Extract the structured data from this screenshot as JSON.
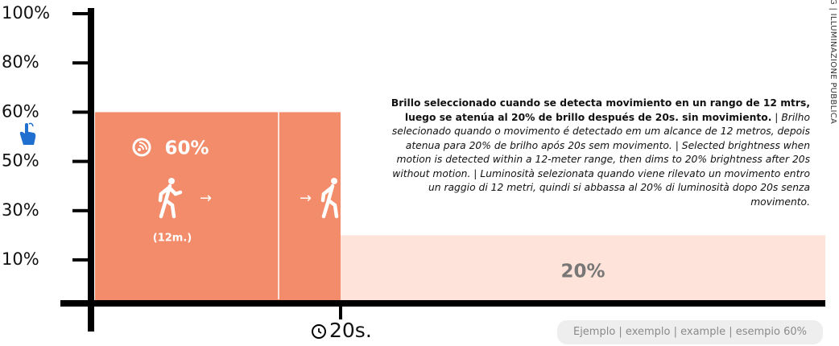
{
  "chart_data": {
    "type": "step",
    "yticks": [
      {
        "value": 100,
        "label": "100%"
      },
      {
        "value": 80,
        "label": "80%"
      },
      {
        "value": 60,
        "label": "60%"
      },
      {
        "value": 50,
        "label": "50%"
      },
      {
        "value": 30,
        "label": "30%"
      },
      {
        "value": 10,
        "label": "10%"
      }
    ],
    "ylim": [
      0,
      100
    ],
    "xlim": [
      0,
      60
    ],
    "xticks": [
      {
        "value": 20,
        "label": "20s."
      }
    ],
    "x": [
      0,
      20
    ],
    "values": [
      60,
      20
    ],
    "value_labels": [
      "60%",
      "20%"
    ],
    "colors": [
      "#f28c6a",
      "#fde3da"
    ],
    "annotation": "(12m.)",
    "description": {
      "bold": "Brillo seleccionado cuando se detecta movimiento en un rango de 12 mtrs, luego se atenúa al 20% de brillo después de 20s. sin movimiento.",
      "italic": "| Brilho selecionado quando o movimento é detectado em um alcance de 12 metros, depois atenua para 20% de brilho após 20s sem movimento. | Selected brightness when motion is detected within a 12-meter range, then dims to 20% brightness after 20s without motion. | Luminosità selezionata quando viene rilevato un movimento entro un raggio di 12 metri, quindi si abbassa al 20% di luminosità dopo 20s senza movimento."
    },
    "footnote": "Ejemplo | exemplo | example | esempio 60%",
    "side_label": "G | ILLUMINAZIONE PUBBLICA"
  }
}
